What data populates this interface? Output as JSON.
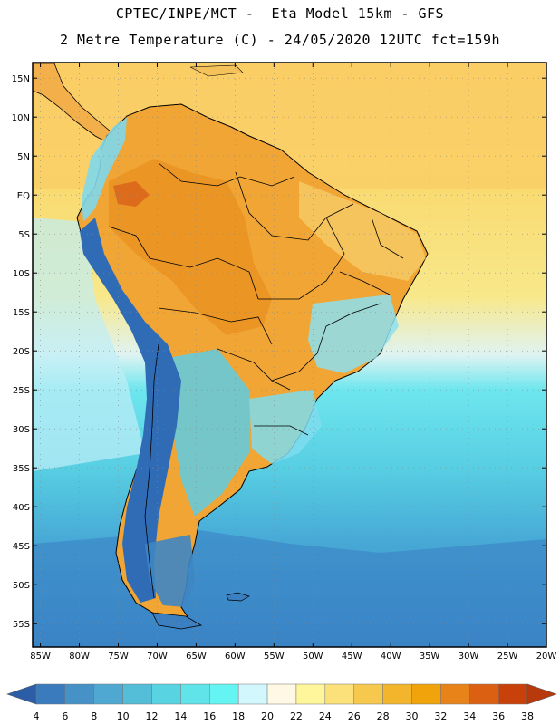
{
  "title_line1": "CPTEC/INPE/MCT -  Eta Model 15km - GFS",
  "title_line2": "2 Metre Temperature (C) - 24/05/2020 12UTC fct=159h",
  "lat_labels": [
    "15N",
    "10N",
    "5N",
    "EQ",
    "5S",
    "10S",
    "15S",
    "20S",
    "25S",
    "30S",
    "35S",
    "40S",
    "45S",
    "50S",
    "55S"
  ],
  "lat_values": [
    15,
    10,
    5,
    0,
    -5,
    -10,
    -15,
    -20,
    -25,
    -30,
    -35,
    -40,
    -45,
    -50,
    -55
  ],
  "lon_labels": [
    "85W",
    "80W",
    "75W",
    "70W",
    "65W",
    "60W",
    "55W",
    "50W",
    "45W",
    "40W",
    "35W",
    "30W",
    "25W",
    "20W"
  ],
  "lon_values": [
    -85,
    -80,
    -75,
    -70,
    -65,
    -60,
    -55,
    -50,
    -45,
    -40,
    -35,
    -30,
    -25,
    -20
  ],
  "map_extent": {
    "lon_min": -86,
    "lon_max": -20,
    "lat_min": -58,
    "lat_max": 17
  },
  "colorbar": {
    "labels": [
      "4",
      "6",
      "8",
      "10",
      "12",
      "14",
      "16",
      "18",
      "20",
      "22",
      "24",
      "26",
      "28",
      "30",
      "32",
      "34",
      "36",
      "38"
    ],
    "colors": [
      "#2c5ea8",
      "#3a7bbd",
      "#4692c7",
      "#4fa8d1",
      "#54bed9",
      "#58d3e2",
      "#60e4ea",
      "#64f5f2",
      "#d2f7fc",
      "#fff8e4",
      "#fff59a",
      "#fce07a",
      "#f6c84e",
      "#f2b52b",
      "#f0a30a",
      "#e8831a",
      "#db6012",
      "#c8400a",
      "#b83a0c"
    ]
  },
  "colors": {
    "ocean_warm": "#fcd36b",
    "ocean_mid": "#f8e47a",
    "land_hot": "#f0a534",
    "andes_cold": "#2f6cb5",
    "ocean_cold": "#4aa9d6",
    "ocean_cyan": "#5ee2ea",
    "land_cyan": "#8fd9f0",
    "border": "#000000"
  }
}
